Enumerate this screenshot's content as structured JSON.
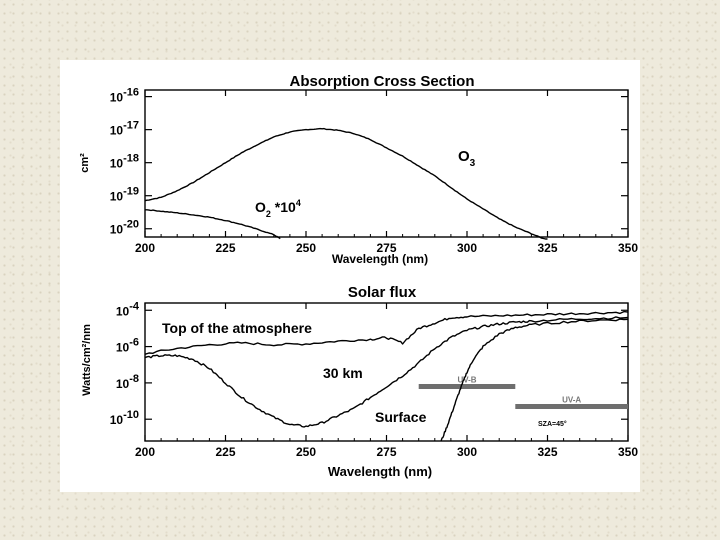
{
  "chart_data": [
    {
      "type": "line",
      "title": "Absorption Cross Section",
      "xlabel": "Wavelength (nm)",
      "ylabel": "cm²",
      "xlim": [
        200,
        350
      ],
      "ylim_log10": [
        -20.25,
        -15.8
      ],
      "y_scale": "log",
      "x_ticks": [
        200,
        225,
        250,
        275,
        300,
        325,
        350
      ],
      "y_ticks": [
        {
          "base": "10",
          "exp": "-16",
          "log10": -16
        },
        {
          "base": "10",
          "exp": "-17",
          "log10": -17
        },
        {
          "base": "10",
          "exp": "-18",
          "log10": -18
        },
        {
          "base": "10",
          "exp": "-19",
          "log10": -19
        },
        {
          "base": "10",
          "exp": "-20",
          "log10": -20
        }
      ],
      "series": [
        {
          "name": "O3",
          "x": [
            200,
            205,
            210,
            215,
            220,
            225,
            230,
            235,
            240,
            245,
            250,
            255,
            260,
            265,
            270,
            275,
            280,
            285,
            290,
            295,
            300,
            305,
            310,
            315,
            320,
            325
          ],
          "log10_y": [
            -19.15,
            -19.05,
            -18.85,
            -18.6,
            -18.3,
            -18.0,
            -17.7,
            -17.45,
            -17.22,
            -17.07,
            -17.0,
            -16.97,
            -17.02,
            -17.12,
            -17.3,
            -17.55,
            -17.8,
            -18.1,
            -18.4,
            -18.75,
            -19.1,
            -19.4,
            -19.7,
            -19.95,
            -20.15,
            -20.35
          ]
        },
        {
          "name": "O2 *10^4",
          "x": [
            200,
            205,
            210,
            215,
            220,
            225,
            230,
            235,
            240,
            242
          ],
          "log10_y": [
            -19.42,
            -19.47,
            -19.52,
            -19.58,
            -19.65,
            -19.75,
            -19.87,
            -20.02,
            -20.18,
            -20.3
          ]
        }
      ],
      "annotations": [
        {
          "base": "O",
          "sub": "3",
          "series": "O3"
        },
        {
          "base": "O",
          "sub": "2",
          "suffix": " *10",
          "sup": "4",
          "series": "O2 *10^4"
        }
      ]
    },
    {
      "type": "line",
      "title": "Solar flux",
      "xlabel": "Wavelength (nm)",
      "ylabel": "Watts/cm²/nm",
      "xlim": [
        200,
        350
      ],
      "ylim_log10": [
        -11.2,
        -3.6
      ],
      "y_scale": "log",
      "x_ticks": [
        200,
        225,
        250,
        275,
        300,
        325,
        350
      ],
      "y_ticks": [
        {
          "base": "10",
          "exp": "-4",
          "log10": -4
        },
        {
          "base": "10",
          "exp": "-6",
          "log10": -6
        },
        {
          "base": "10",
          "exp": "-8",
          "log10": -8
        },
        {
          "base": "10",
          "exp": "-10",
          "log10": -10
        }
      ],
      "series": [
        {
          "name": "Top of the atmosphere",
          "x": [
            200,
            210,
            220,
            230,
            240,
            250,
            260,
            270,
            275,
            280,
            285,
            290,
            295,
            300,
            310,
            320,
            330,
            340,
            350
          ],
          "log10_y": [
            -6.4,
            -6.1,
            -5.9,
            -5.8,
            -5.9,
            -5.85,
            -5.7,
            -5.6,
            -5.5,
            -5.8,
            -5.0,
            -4.7,
            -4.4,
            -4.35,
            -4.3,
            -4.25,
            -4.2,
            -4.15,
            -4.1
          ]
        },
        {
          "name": "30 km",
          "x": [
            200,
            205,
            210,
            215,
            220,
            225,
            230,
            235,
            240,
            245,
            250,
            255,
            260,
            265,
            270,
            275,
            280,
            285,
            290,
            295,
            300,
            305,
            310,
            315,
            320,
            330,
            340,
            350
          ],
          "log10_y": [
            -6.6,
            -6.5,
            -6.5,
            -6.7,
            -7.2,
            -8.0,
            -8.8,
            -9.4,
            -9.9,
            -10.3,
            -10.4,
            -10.2,
            -9.8,
            -9.4,
            -8.8,
            -8.2,
            -7.6,
            -6.9,
            -6.1,
            -5.5,
            -5.1,
            -4.9,
            -4.75,
            -4.65,
            -4.6,
            -4.5,
            -4.45,
            -4.4
          ]
        },
        {
          "name": "Surface",
          "x": [
            292,
            294,
            296,
            298,
            300,
            302,
            305,
            310,
            315,
            320,
            330,
            340,
            350
          ],
          "log10_y": [
            -11.2,
            -10.3,
            -9.3,
            -8.3,
            -7.4,
            -6.7,
            -6.0,
            -5.3,
            -4.95,
            -4.8,
            -4.65,
            -4.55,
            -4.5
          ]
        }
      ],
      "bands": [
        {
          "label": "UV-B",
          "x_start": 285,
          "x_end": 315,
          "log10_y": -8.2
        },
        {
          "label": "UV-A",
          "x_start": 315,
          "x_end": 350,
          "log10_y": -9.3
        }
      ],
      "annotations": [
        {
          "text": "Top of the atmosphere",
          "series": "Top of the atmosphere"
        },
        {
          "text": "30 km",
          "series": "30 km"
        },
        {
          "text": "Surface",
          "series": "Surface"
        },
        {
          "text": "SZA=45°"
        }
      ]
    }
  ]
}
